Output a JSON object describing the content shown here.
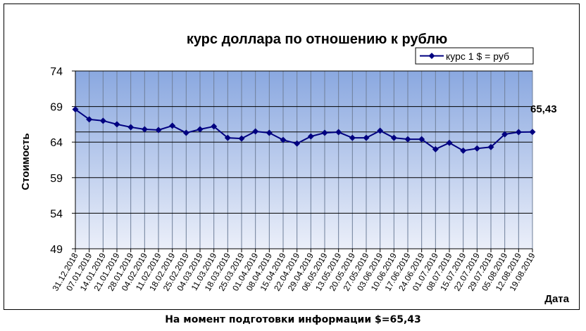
{
  "chart_data": {
    "type": "line",
    "title": "курс доллара по отношению к рублю",
    "xlabel": "Дата",
    "ylabel": "Стоимость",
    "ylim": [
      49,
      74
    ],
    "yticks": [
      "74",
      "69",
      "64",
      "59",
      "54",
      "49"
    ],
    "grid": true,
    "legend_position": "top-right",
    "colors": {
      "series": "#000080",
      "plot_top": "#8aa8e0",
      "plot_bottom": "#ebeff9",
      "reference_line": "#000000"
    },
    "categories": [
      "31.12.2018",
      "07.01.2019",
      "14.01.2019",
      "21.01.2019",
      "28.01.2019",
      "04.02.2019",
      "11.02.2019",
      "18.02.2019",
      "25.02.2019",
      "04.03.2019",
      "11.03.2019",
      "18.03.2019",
      "25.03.2019",
      "01.04.2019",
      "08.04.2019",
      "15.04.2019",
      "22.04.2019",
      "29.04.2019",
      "06.05.2019",
      "13.05.2019",
      "20.05.2019",
      "27.05.2019",
      "03.06.2019",
      "10.06.2019",
      "17.06.2019",
      "24.06.2019",
      "01.07.2019",
      "08.07.2019",
      "15.07.2019",
      "22.07.2019",
      "29.07.2019",
      "05.08.2019",
      "12.08.2019",
      "19.08.2019"
    ],
    "series": [
      {
        "name": "курс 1 $ = руб",
        "values": [
          68.6,
          67.2,
          67.0,
          66.5,
          66.1,
          65.8,
          65.7,
          66.3,
          65.3,
          65.8,
          66.2,
          64.6,
          64.5,
          65.5,
          65.3,
          64.3,
          63.8,
          64.8,
          65.3,
          65.4,
          64.6,
          64.6,
          65.6,
          64.6,
          64.4,
          64.4,
          63.0,
          63.9,
          62.8,
          63.1,
          63.3,
          65.1,
          65.4,
          65.43
        ]
      }
    ],
    "reference_value": 65.43,
    "reference_label": "65,43"
  },
  "caption": "На момент подготовки информации $=65,43"
}
